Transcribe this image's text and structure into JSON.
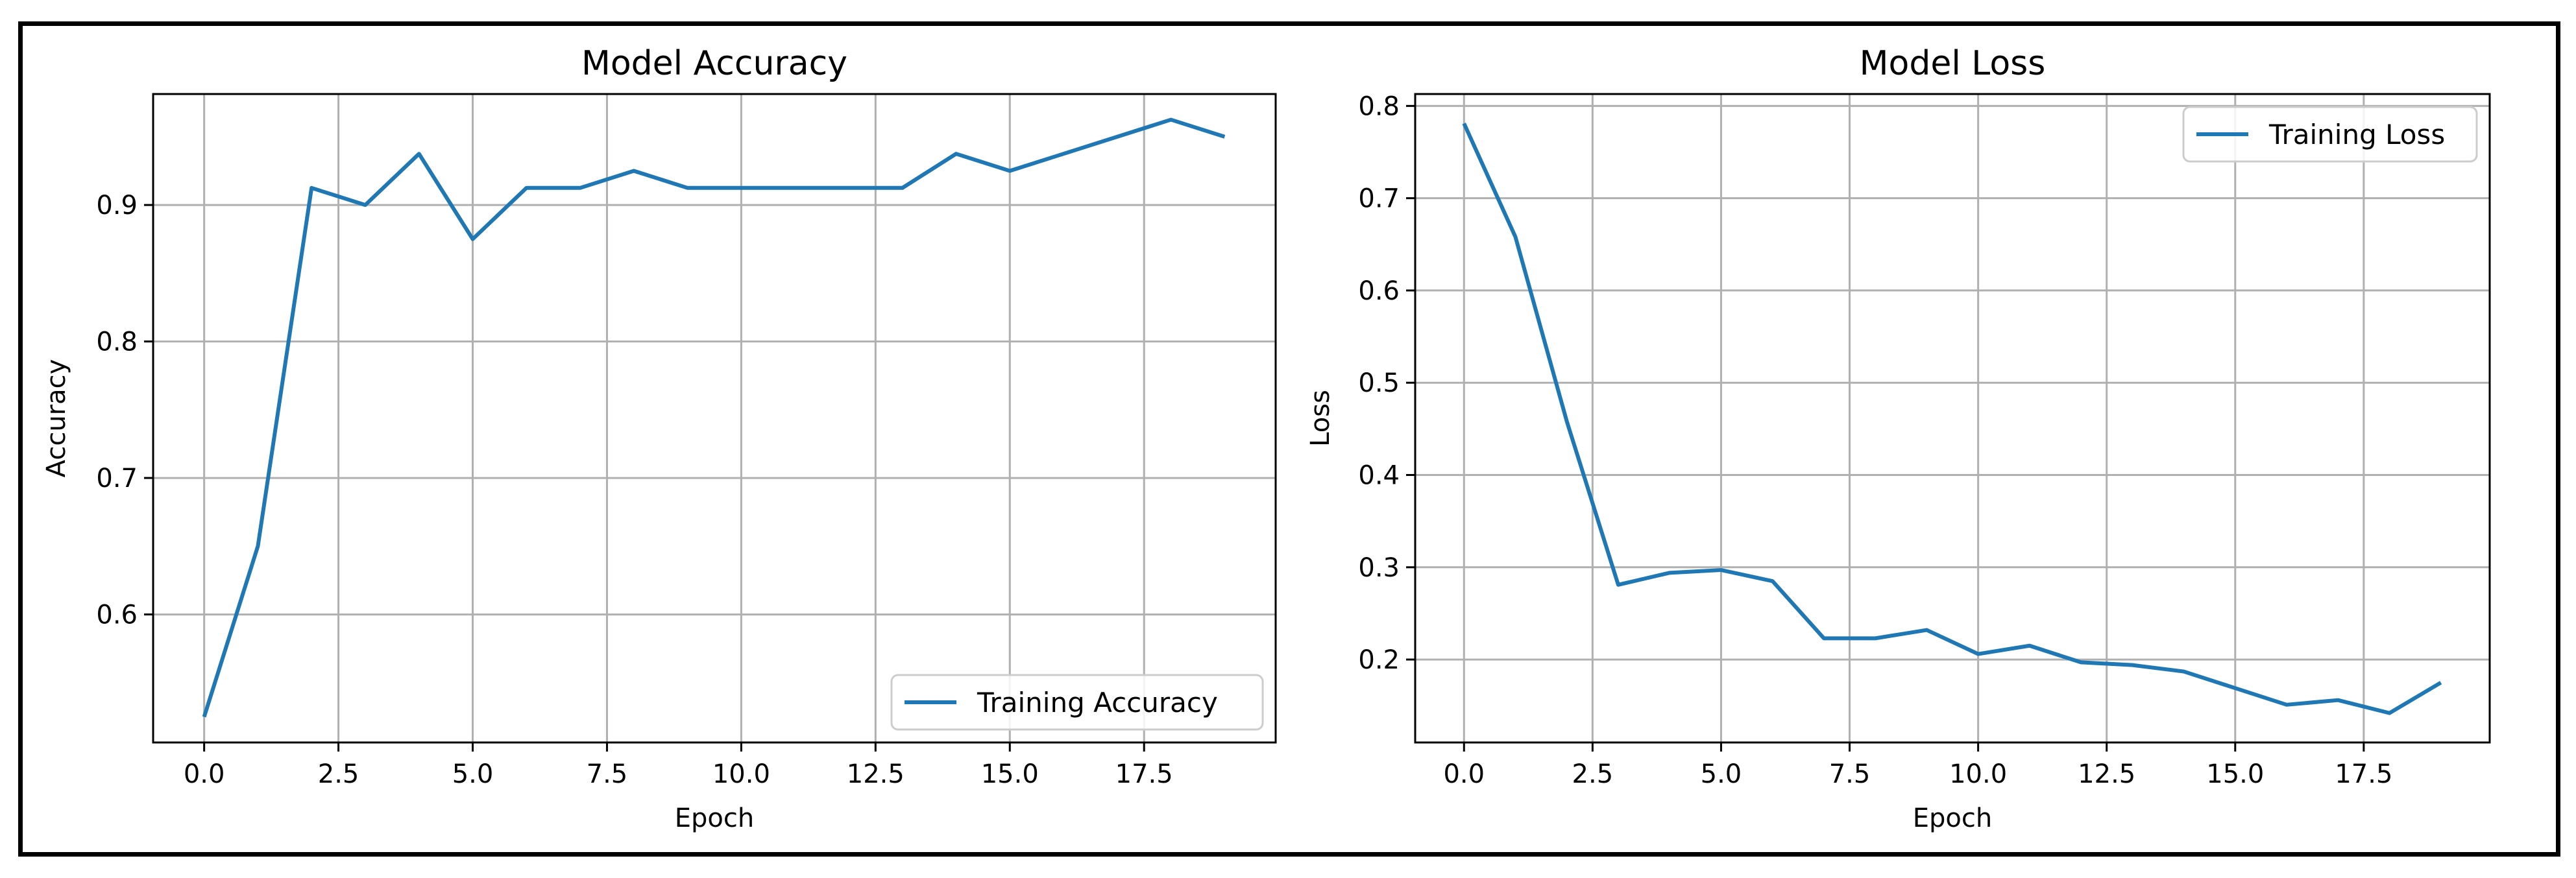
{
  "chart_data": [
    {
      "type": "line",
      "title": "Model Accuracy",
      "xlabel": "Epoch",
      "ylabel": "Accuracy",
      "x": [
        0,
        1,
        2,
        3,
        4,
        5,
        6,
        7,
        8,
        9,
        10,
        11,
        12,
        13,
        14,
        15,
        16,
        17,
        18,
        19
      ],
      "series": [
        {
          "name": "Training Accuracy",
          "color": "#1f77b4",
          "values": [
            0.525,
            0.65,
            0.9125,
            0.9,
            0.9375,
            0.875,
            0.9125,
            0.9125,
            0.925,
            0.9125,
            0.9125,
            0.9125,
            0.9125,
            0.9125,
            0.9375,
            0.925,
            0.9375,
            0.95,
            0.9625,
            0.95
          ]
        }
      ],
      "xlim": [
        -0.95,
        19.95
      ],
      "ylim": [
        0.5062,
        0.9813
      ],
      "xticks": [
        0.0,
        2.5,
        5.0,
        7.5,
        10.0,
        12.5,
        15.0,
        17.5
      ],
      "xtick_labels": [
        "0.0",
        "2.5",
        "5.0",
        "7.5",
        "10.0",
        "12.5",
        "15.0",
        "17.5"
      ],
      "yticks": [
        0.6,
        0.7,
        0.8,
        0.9
      ],
      "ytick_labels": [
        "0.6",
        "0.7",
        "0.8",
        "0.9"
      ],
      "grid": true,
      "legend_position": "lower-right"
    },
    {
      "type": "line",
      "title": "Model Loss",
      "xlabel": "Epoch",
      "ylabel": "Loss",
      "x": [
        0,
        1,
        2,
        3,
        4,
        5,
        6,
        7,
        8,
        9,
        10,
        11,
        12,
        13,
        14,
        15,
        16,
        17,
        18,
        19
      ],
      "series": [
        {
          "name": "Training Loss",
          "color": "#1f77b4",
          "values": [
            0.781,
            0.658,
            0.458,
            0.281,
            0.294,
            0.297,
            0.285,
            0.223,
            0.223,
            0.232,
            0.206,
            0.215,
            0.197,
            0.194,
            0.187,
            0.169,
            0.151,
            0.156,
            0.142,
            0.175
          ]
        }
      ],
      "xlim": [
        -0.95,
        19.95
      ],
      "ylim": [
        0.1101,
        0.8129
      ],
      "xticks": [
        0.0,
        2.5,
        5.0,
        7.5,
        10.0,
        12.5,
        15.0,
        17.5
      ],
      "xtick_labels": [
        "0.0",
        "2.5",
        "5.0",
        "7.5",
        "10.0",
        "12.5",
        "15.0",
        "17.5"
      ],
      "yticks": [
        0.2,
        0.3,
        0.4,
        0.5,
        0.6,
        0.7,
        0.8
      ],
      "ytick_labels": [
        "0.2",
        "0.3",
        "0.4",
        "0.5",
        "0.6",
        "0.7",
        "0.8"
      ],
      "grid": true,
      "legend_position": "upper-right"
    }
  ]
}
